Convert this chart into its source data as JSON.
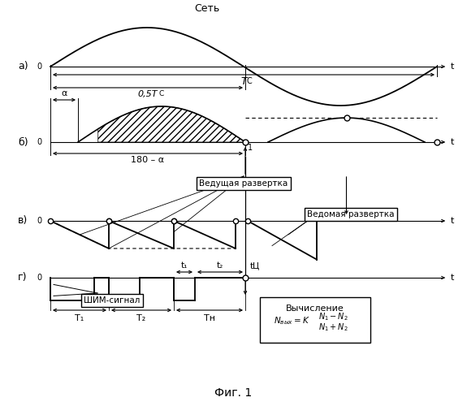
{
  "title": "Фиг. 1",
  "panel_a_label": "а)",
  "panel_b_label": "б)",
  "panel_c_label": "в)",
  "panel_d_label": "г)",
  "net_label": "Сеть",
  "Tc_label": "TC",
  "half_Tc_label": "0,5TC",
  "alpha_label": "α",
  "angle_label": "180 – α",
  "vedushaya_label": "Ведущая развертка",
  "vedomaya_label": "Ведомая развертка",
  "shim_label": "ШИМ-сигнал",
  "vych_label": "Вычисление",
  "t_label": "t",
  "t1_label": "t₁",
  "t2_label": "t₂",
  "tts_label": "tЦ",
  "T1_label": "T₁",
  "T2_label": "T₂",
  "Tn_label": "Tн",
  "one_label": "1",
  "bg_color": "#ffffff",
  "line_color": "#000000"
}
